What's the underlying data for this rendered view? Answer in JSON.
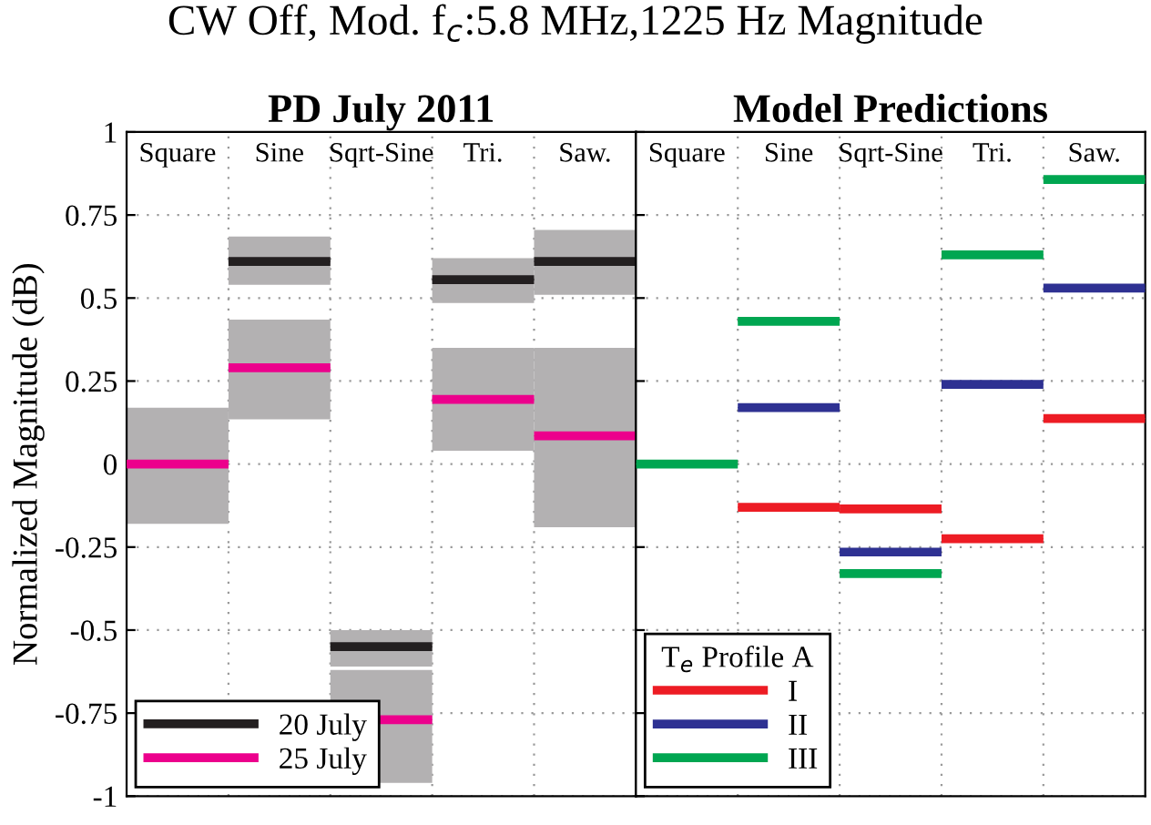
{
  "chart_data": [
    {
      "type": "box",
      "title": "PD July 2011",
      "ylabel": "Normalized Magnitude (dB)",
      "annotations": [
        "CW Off, Mod. f$_{c}$:5.8 MHz,1225 Hz Magnitude"
      ],
      "categories": [
        "Square",
        "Sine",
        "Sqrt-Sine",
        "Tri.",
        "Saw."
      ],
      "ylim": [
        -1,
        1
      ],
      "yticks": [
        -1,
        -0.75,
        -0.5,
        -0.25,
        0,
        0.25,
        0.5,
        0.75,
        1
      ],
      "grid": true,
      "legend": "bottom left",
      "series": [
        {
          "type": "bar",
          "color": "#b3b1b2",
          "base": [
            null,
            0.54,
            -0.61,
            0.485,
            0.51
          ],
          "values": [
            null,
            0.145,
            0.11,
            0.135,
            0.195
          ]
        },
        {
          "type": "bar",
          "color": "#b3b1b2",
          "base": [
            -0.18,
            0.135,
            -0.96,
            0.04,
            -0.19
          ],
          "values": [
            0.35,
            0.3,
            0.34,
            0.31,
            0.54
          ]
        },
        {
          "name": "20 July",
          "color": "#231f20",
          "boxes": [
            null,
            {
              "low": 0.61,
              "q1": 0.61,
              "median": 0.61,
              "q3": 0.61,
              "high": 0.61
            },
            {
              "low": -0.55,
              "q1": -0.55,
              "median": -0.55,
              "q3": -0.55,
              "high": -0.55
            },
            {
              "low": 0.555,
              "q1": 0.555,
              "median": 0.555,
              "q3": 0.555,
              "high": 0.555
            },
            {
              "low": 0.61,
              "q1": 0.61,
              "median": 0.61,
              "q3": 0.61,
              "high": 0.61
            }
          ]
        },
        {
          "name": "25 July",
          "color": "#ec008c",
          "boxes": [
            {
              "low": 0,
              "q1": 0,
              "median": 0,
              "q3": 0,
              "high": 0
            },
            {
              "low": 0.29,
              "q1": 0.29,
              "median": 0.29,
              "q3": 0.29,
              "high": 0.29
            },
            {
              "low": -0.77,
              "q1": -0.77,
              "median": -0.77,
              "q3": -0.77,
              "high": -0.77
            },
            {
              "low": 0.195,
              "q1": 0.195,
              "median": 0.195,
              "q3": 0.195,
              "high": 0.195
            },
            {
              "low": 0.085,
              "q1": 0.085,
              "median": 0.085,
              "q3": 0.085,
              "high": 0.085
            }
          ]
        }
      ]
    },
    {
      "type": "box",
      "title": "Model Predictions",
      "legend_title": "T$_{e}$ Profile A",
      "categories": [
        "Square",
        "Sine",
        "Sqrt-Sine",
        "Tri.",
        "Saw."
      ],
      "ylim": [
        -1,
        1
      ],
      "yticks": [
        -1,
        -0.75,
        -0.5,
        -0.25,
        0,
        0.25,
        0.5,
        0.75,
        1
      ],
      "grid": true,
      "legend": "bottom left",
      "tick_labels": "x",
      "series": [
        {
          "name": "I",
          "color": "#ed1c24",
          "boxes": [
            null,
            {
              "low": -0.13,
              "q1": -0.13,
              "median": -0.13,
              "q3": -0.13,
              "high": -0.13
            },
            {
              "low": -0.135,
              "q1": -0.135,
              "median": -0.135,
              "q3": -0.135,
              "high": -0.135
            },
            {
              "low": -0.225,
              "q1": -0.225,
              "median": -0.225,
              "q3": -0.225,
              "high": -0.225
            },
            {
              "low": 0.137,
              "q1": 0.137,
              "median": 0.137,
              "q3": 0.137,
              "high": 0.137
            }
          ]
        },
        {
          "name": "II",
          "color": "#2e3192",
          "boxes": [
            null,
            {
              "low": 0.17,
              "q1": 0.17,
              "median": 0.17,
              "q3": 0.17,
              "high": 0.17
            },
            {
              "low": -0.265,
              "q1": -0.265,
              "median": -0.265,
              "q3": -0.265,
              "high": -0.265
            },
            {
              "low": 0.24,
              "q1": 0.24,
              "median": 0.24,
              "q3": 0.24,
              "high": 0.24
            },
            {
              "low": 0.53,
              "q1": 0.53,
              "median": 0.53,
              "q3": 0.53,
              "high": 0.53
            }
          ]
        },
        {
          "name": "III",
          "color": "#00a651",
          "boxes": [
            {
              "low": 0,
              "q1": 0,
              "median": 0,
              "q3": 0,
              "high": 0
            },
            {
              "low": 0.43,
              "q1": 0.43,
              "median": 0.43,
              "q3": 0.43,
              "high": 0.43
            },
            {
              "low": -0.33,
              "q1": -0.33,
              "median": -0.33,
              "q3": -0.33,
              "high": -0.33
            },
            {
              "low": 0.63,
              "q1": 0.63,
              "median": 0.63,
              "q3": 0.63,
              "high": 0.63
            },
            {
              "low": 0.857,
              "q1": 0.857,
              "median": 0.857,
              "q3": 0.857,
              "high": 0.857
            }
          ]
        }
      ]
    }
  ]
}
